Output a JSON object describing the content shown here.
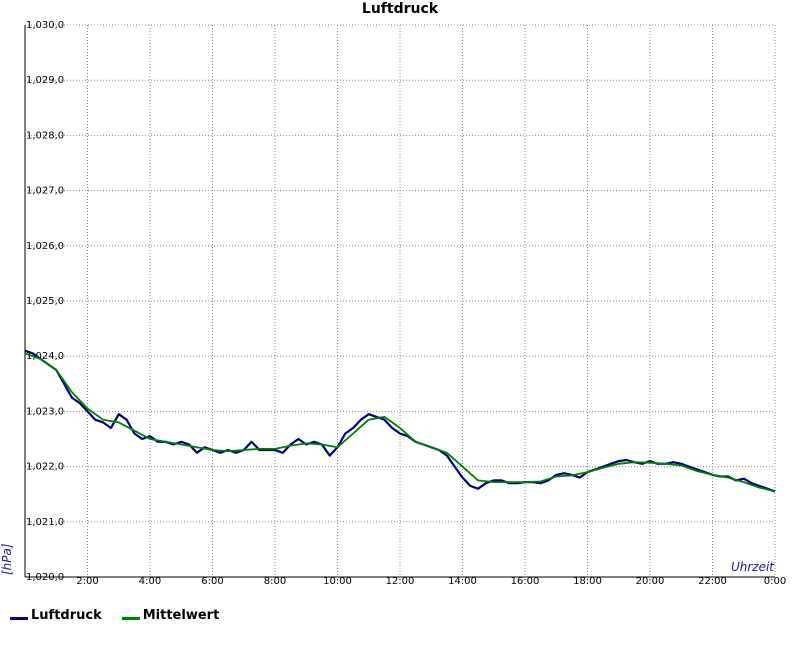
{
  "chart_data": {
    "type": "line",
    "title": "Luftdruck",
    "xlabel": "Uhrzeit",
    "ylabel": "[hPa]",
    "xlim": [
      0,
      24
    ],
    "ylim": [
      1020.0,
      1030.0
    ],
    "grid": true,
    "legend_position": "bottom-left",
    "y_ticks": [
      "1,020,0",
      "1,021,0",
      "1,022,0",
      "1,023,0",
      "1,024,0",
      "1,025,0",
      "1,026,0",
      "1,027,0",
      "1,028,0",
      "1,029,0",
      "1,030,0"
    ],
    "x_ticks": [
      {
        "value": 2,
        "label": "2:00"
      },
      {
        "value": 4,
        "label": "4:00"
      },
      {
        "value": 6,
        "label": "6:00"
      },
      {
        "value": 8,
        "label": "8:00"
      },
      {
        "value": 10,
        "label": "10:00"
      },
      {
        "value": 12,
        "label": "12:00"
      },
      {
        "value": 14,
        "label": "14:00"
      },
      {
        "value": 16,
        "label": "16:00"
      },
      {
        "value": 18,
        "label": "18:00"
      },
      {
        "value": 20,
        "label": "20:00"
      },
      {
        "value": 22,
        "label": "22:00"
      },
      {
        "value": 24,
        "label": "0:00"
      }
    ],
    "series": [
      {
        "name": "Luftdruck",
        "color": "#000080",
        "x": [
          0,
          0.25,
          0.5,
          0.75,
          1.0,
          1.25,
          1.5,
          1.75,
          2.0,
          2.25,
          2.5,
          2.75,
          3.0,
          3.25,
          3.5,
          3.75,
          4.0,
          4.25,
          4.5,
          4.75,
          5.0,
          5.25,
          5.5,
          5.75,
          6.0,
          6.25,
          6.5,
          6.75,
          7.0,
          7.25,
          7.5,
          7.75,
          8.0,
          8.25,
          8.5,
          8.75,
          9.0,
          9.25,
          9.5,
          9.75,
          10.0,
          10.25,
          10.5,
          10.75,
          11.0,
          11.25,
          11.5,
          11.75,
          12.0,
          12.25,
          12.5,
          12.75,
          13.0,
          13.25,
          13.5,
          13.75,
          14.0,
          14.25,
          14.5,
          14.75,
          15.0,
          15.25,
          15.5,
          15.75,
          16.0,
          16.25,
          16.5,
          16.75,
          17.0,
          17.25,
          17.5,
          17.75,
          18.0,
          18.25,
          18.5,
          18.75,
          19.0,
          19.25,
          19.5,
          19.75,
          20.0,
          20.25,
          20.5,
          20.75,
          21.0,
          21.25,
          21.5,
          21.75,
          22.0,
          22.25,
          22.5,
          22.75,
          23.0,
          23.25,
          23.5,
          23.75,
          24.0
        ],
        "values": [
          1024.1,
          1024.05,
          1023.95,
          1023.85,
          1023.75,
          1023.5,
          1023.25,
          1023.15,
          1023.0,
          1022.85,
          1022.8,
          1022.7,
          1022.95,
          1022.85,
          1022.6,
          1022.5,
          1022.55,
          1022.45,
          1022.45,
          1022.4,
          1022.45,
          1022.4,
          1022.25,
          1022.35,
          1022.3,
          1022.25,
          1022.3,
          1022.25,
          1022.3,
          1022.45,
          1022.3,
          1022.3,
          1022.3,
          1022.25,
          1022.4,
          1022.5,
          1022.4,
          1022.45,
          1022.4,
          1022.2,
          1022.35,
          1022.6,
          1022.7,
          1022.85,
          1022.95,
          1022.9,
          1022.85,
          1022.7,
          1022.6,
          1022.55,
          1022.45,
          1022.4,
          1022.35,
          1022.3,
          1022.2,
          1022.0,
          1021.8,
          1021.65,
          1021.6,
          1021.7,
          1021.75,
          1021.75,
          1021.7,
          1021.7,
          1021.72,
          1021.72,
          1021.7,
          1021.75,
          1021.85,
          1021.88,
          1021.85,
          1021.8,
          1021.9,
          1021.95,
          1022.0,
          1022.05,
          1022.1,
          1022.12,
          1022.08,
          1022.05,
          1022.1,
          1022.05,
          1022.05,
          1022.08,
          1022.05,
          1022.0,
          1021.95,
          1021.9,
          1021.85,
          1021.82,
          1021.82,
          1021.75,
          1021.78,
          1021.7,
          1021.65,
          1021.6,
          1021.55
        ]
      },
      {
        "name": "Mittelwert",
        "color": "#008000",
        "x": [
          0,
          0.5,
          1.0,
          1.5,
          2.0,
          2.5,
          3.0,
          3.5,
          4.0,
          4.5,
          5.0,
          5.5,
          6.0,
          6.5,
          7.0,
          7.5,
          8.0,
          8.5,
          9.0,
          9.5,
          10.0,
          10.5,
          11.0,
          11.5,
          12.0,
          12.5,
          13.0,
          13.5,
          14.0,
          14.5,
          15.0,
          15.5,
          16.0,
          16.5,
          17.0,
          17.5,
          18.0,
          18.5,
          19.0,
          19.5,
          20.0,
          20.5,
          21.0,
          21.5,
          22.0,
          22.5,
          23.0,
          23.5,
          24.0
        ],
        "values": [
          1024.05,
          1023.95,
          1023.75,
          1023.35,
          1023.05,
          1022.85,
          1022.8,
          1022.65,
          1022.5,
          1022.45,
          1022.4,
          1022.35,
          1022.3,
          1022.28,
          1022.3,
          1022.32,
          1022.32,
          1022.38,
          1022.42,
          1022.4,
          1022.35,
          1022.6,
          1022.85,
          1022.9,
          1022.7,
          1022.45,
          1022.35,
          1022.25,
          1022.0,
          1021.75,
          1021.72,
          1021.72,
          1021.72,
          1021.73,
          1021.82,
          1021.84,
          1021.9,
          1021.98,
          1022.05,
          1022.08,
          1022.07,
          1022.05,
          1022.02,
          1021.92,
          1021.85,
          1021.8,
          1021.72,
          1021.62,
          1021.55
        ]
      }
    ]
  }
}
